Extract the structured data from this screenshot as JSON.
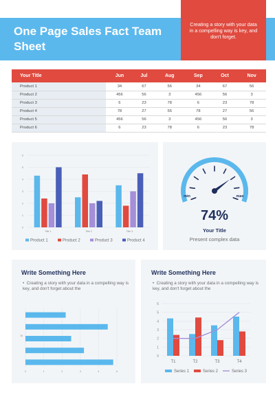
{
  "header": {
    "title": "One Page Sales Fact Team Sheet",
    "callout": "Creating a story with your data in a compelling way is key, and don't forget."
  },
  "table": {
    "corner": "Your Title",
    "columns": [
      "Jun",
      "Jul",
      "Aug",
      "Sep",
      "Oct",
      "Nov"
    ],
    "rows": [
      {
        "label": "Product 1",
        "values": [
          "34",
          "67",
          "56",
          "34",
          "67",
          "56"
        ]
      },
      {
        "label": "Product 2",
        "values": [
          "456",
          "56",
          "3",
          "456",
          "56",
          "3"
        ]
      },
      {
        "label": "Product 3",
        "values": [
          "6",
          "23",
          "78",
          "6",
          "23",
          "78"
        ]
      },
      {
        "label": "Product 4",
        "values": [
          "78",
          "27",
          "56",
          "78",
          "27",
          "56"
        ]
      },
      {
        "label": "Product 5",
        "values": [
          "456",
          "56",
          "3",
          "456",
          "56",
          "3"
        ]
      },
      {
        "label": "Product 6",
        "values": [
          "6",
          "23",
          "78",
          "6",
          "23",
          "78"
        ]
      }
    ]
  },
  "colors": {
    "blue": "#5bb8ec",
    "red": "#e04a3f",
    "lavender": "#a48fd8",
    "navy": "#4a5fb8",
    "dark": "#1f2f5c"
  },
  "gauge": {
    "percent": "74%",
    "value": 0.74,
    "title": "Your Title",
    "subtitle": "Present complex data",
    "min_label": "min",
    "max_label": "max"
  },
  "panel3": {
    "title": "Write Something Here",
    "bullet": "Creating a story with your data in a compelling way is key, and don't forget about the"
  },
  "panel4": {
    "title": "Write Something Here",
    "bullet": "Creating a story with your data in a compelling way is key, and don't forget about the"
  },
  "chart_data": [
    {
      "type": "bar",
      "categories": [
        "Title 1",
        "Title 2",
        "Title 3"
      ],
      "series": [
        {
          "name": "Product 1",
          "values": [
            4.3,
            2.5,
            3.5
          ]
        },
        {
          "name": "Product 2",
          "values": [
            2.4,
            4.4,
            1.8
          ]
        },
        {
          "name": "Product 3",
          "values": [
            2.0,
            2.0,
            3.0
          ]
        },
        {
          "name": "Product 4",
          "values": [
            5.0,
            2.2,
            4.5
          ]
        }
      ],
      "ylim": [
        0,
        6
      ],
      "yticks": [
        "0",
        "1",
        "2",
        "3",
        "4",
        "5",
        "6"
      ],
      "legend": "bottom"
    },
    {
      "type": "bar",
      "orientation": "horizontal",
      "categories": [
        "",
        "",
        "",
        "",
        ""
      ],
      "values": [
        2.2,
        4.5,
        2.5,
        3.2,
        4.8
      ],
      "xlim": [
        0,
        5
      ],
      "xticks": [
        "0",
        "1",
        "2",
        "3",
        "4",
        "5"
      ],
      "axis_label": "15"
    },
    {
      "type": "bar",
      "categories": [
        "T1",
        "T2",
        "T3",
        "T4"
      ],
      "series": [
        {
          "name": "Series 1",
          "type": "bar",
          "values": [
            4.3,
            2.5,
            3.5,
            4.5
          ]
        },
        {
          "name": "Series 2",
          "type": "bar",
          "values": [
            2.4,
            4.4,
            1.8,
            2.8
          ]
        },
        {
          "name": "Series 3",
          "type": "line",
          "values": [
            2.0,
            2.0,
            3.0,
            5.0
          ]
        }
      ],
      "ylim": [
        0,
        6
      ],
      "yticks": [
        "0",
        "1",
        "2",
        "3",
        "4",
        "5",
        "6"
      ],
      "legend": "bottom"
    }
  ]
}
